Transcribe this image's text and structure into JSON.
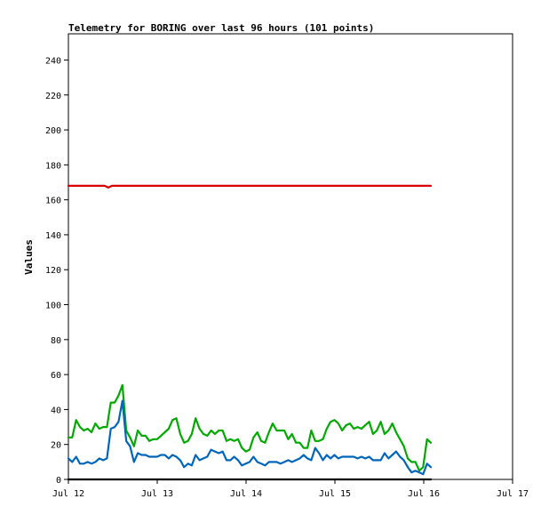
{
  "chart_data": {
    "type": "line",
    "title": "Telemetry for BORING over last 96 hours (101 points)",
    "ylabel": "Values",
    "xlabel": "",
    "ylim": [
      0,
      255
    ],
    "xlim_days": [
      0,
      5
    ],
    "y_ticks": [
      0,
      20,
      40,
      60,
      80,
      100,
      120,
      140,
      160,
      180,
      200,
      220,
      240
    ],
    "x_ticks": [
      {
        "day": 0,
        "label": "Jul 12"
      },
      {
        "day": 1,
        "label": "Jul 13"
      },
      {
        "day": 2,
        "label": "Jul 14"
      },
      {
        "day": 3,
        "label": "Jul 15"
      },
      {
        "day": 4,
        "label": "Jul 16"
      },
      {
        "day": 5,
        "label": "Jul 17"
      }
    ],
    "grid": false,
    "legend": "none",
    "x_start_day": 0,
    "x_end_day": 4.08,
    "series": [
      {
        "color": "#dd0000",
        "values": [
          168,
          168,
          168,
          168,
          168,
          168,
          168,
          168,
          168,
          168,
          168,
          167,
          168,
          168,
          168,
          168,
          168,
          168,
          168,
          168,
          168,
          168,
          168,
          168,
          168,
          168,
          168,
          168,
          168,
          168,
          168,
          168,
          168,
          168,
          168,
          168,
          168,
          168,
          168,
          168,
          168,
          168,
          168,
          168,
          168,
          168,
          168,
          168,
          168,
          168,
          168,
          168,
          168,
          168,
          168,
          168,
          168,
          168,
          168,
          168,
          168,
          168,
          168,
          168,
          168,
          168,
          168,
          168,
          168,
          168,
          168,
          168,
          168,
          168,
          168,
          168,
          168,
          168,
          168,
          168,
          168,
          168,
          168,
          168,
          168,
          168,
          168,
          168,
          168,
          168,
          168,
          168,
          168,
          168,
          168,
          168,
          168,
          168,
          168,
          168,
          168
        ]
      },
      {
        "color": "#00aa00",
        "values": [
          24,
          24,
          34,
          30,
          28,
          29,
          27,
          32,
          29,
          30,
          30,
          44,
          44,
          48,
          54,
          28,
          24,
          19,
          28,
          25,
          25,
          22,
          23,
          23,
          25,
          27,
          29,
          34,
          35,
          26,
          21,
          22,
          26,
          35,
          29,
          26,
          25,
          28,
          26,
          28,
          28,
          22,
          23,
          22,
          23,
          18,
          16,
          17,
          24,
          27,
          22,
          21,
          27,
          32,
          28,
          28,
          28,
          23,
          26,
          21,
          21,
          18,
          18,
          28,
          22,
          22,
          23,
          29,
          33,
          34,
          32,
          28,
          31,
          32,
          29,
          30,
          29,
          31,
          33,
          26,
          28,
          33,
          26,
          28,
          32,
          27,
          23,
          19,
          12,
          10,
          10,
          5,
          7,
          23,
          21
        ]
      },
      {
        "color": "#0066bb",
        "values": [
          12,
          10,
          13,
          9,
          9,
          10,
          9,
          10,
          12,
          11,
          12,
          29,
          30,
          33,
          45,
          22,
          19,
          10,
          15,
          14,
          14,
          13,
          13,
          13,
          14,
          14,
          12,
          14,
          13,
          11,
          7,
          9,
          8,
          14,
          11,
          12,
          13,
          17,
          16,
          15,
          16,
          11,
          11,
          13,
          11,
          8,
          9,
          10,
          13,
          10,
          9,
          8,
          10,
          10,
          10,
          9,
          10,
          11,
          10,
          11,
          12,
          14,
          12,
          11,
          18,
          15,
          11,
          14,
          12,
          14,
          12,
          13,
          13,
          13,
          13,
          12,
          13,
          12,
          13,
          11,
          11,
          11,
          15,
          12,
          14,
          16,
          13,
          11,
          7,
          4,
          5,
          4,
          3,
          9,
          7
        ]
      },
      {
        "color": "#000000",
        "values": [
          0,
          0,
          0,
          0,
          0,
          0,
          0,
          0,
          0,
          0,
          0,
          0,
          0,
          0,
          0,
          0,
          0,
          0,
          0,
          0,
          0,
          0,
          0,
          0,
          0,
          0,
          0,
          0,
          0,
          0,
          0,
          0,
          0,
          0,
          0,
          0,
          0,
          0,
          0,
          0,
          0,
          0,
          0,
          0,
          0,
          0,
          0,
          0,
          0,
          0,
          0,
          0,
          0,
          0,
          0,
          0,
          0,
          0,
          0,
          0,
          0,
          0,
          0,
          0,
          0,
          0,
          0,
          0,
          0,
          0,
          0,
          0,
          0,
          0,
          0,
          0,
          0,
          0,
          0,
          0,
          0,
          0,
          0,
          0,
          0,
          0,
          0,
          0,
          0,
          0,
          0,
          0,
          0,
          0,
          0
        ]
      }
    ]
  }
}
